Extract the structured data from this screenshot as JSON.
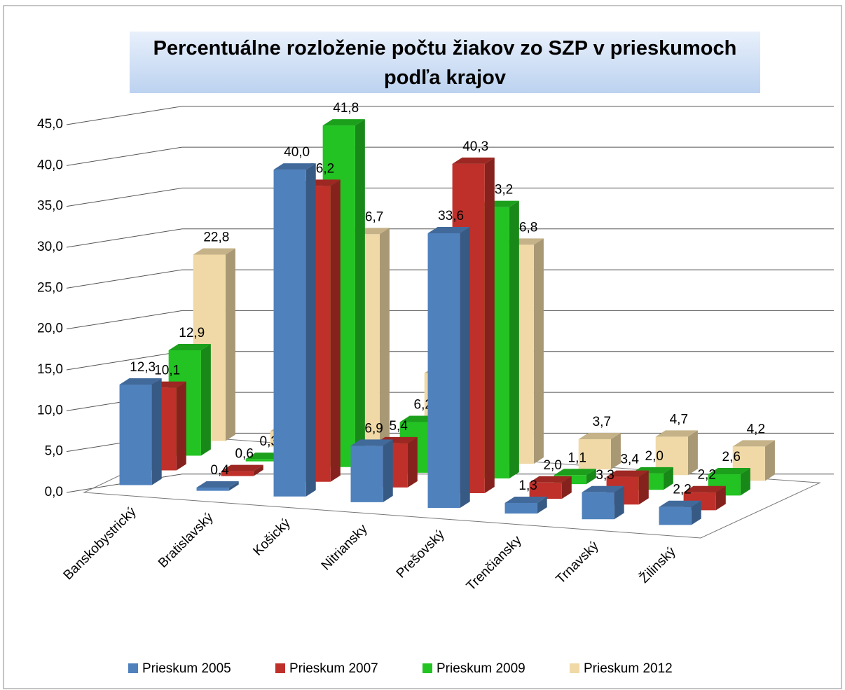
{
  "chart_data": {
    "type": "bar3d",
    "title": "Percentuálne rozloženie počtu žiakov zo SZP v prieskumoch podľa krajov",
    "categories": [
      "Banskobystrický",
      "Bratislavský",
      "Košický",
      "Nitriansky",
      "Prešovský",
      "Trenčiansky",
      "Trnavský",
      "Žilinský"
    ],
    "series": [
      {
        "name": "Prieskum 2005",
        "color": "#4f81bd",
        "values": [
          12.3,
          0.4,
          40.0,
          6.9,
          33.6,
          1.3,
          3.3,
          2.2
        ],
        "value_labels": [
          "12,3",
          "0,4",
          "40,0",
          "6,9",
          "33,6",
          "1,3",
          "3,3",
          "2,2"
        ]
      },
      {
        "name": "Prieskum 2007",
        "color": "#c0302a",
        "values": [
          10.1,
          0.6,
          36.2,
          5.4,
          40.3,
          2.0,
          3.4,
          2.2
        ],
        "value_labels": [
          "10,1",
          "0,6",
          "36,2",
          "5,4",
          "40,3",
          "2,0",
          "3,4",
          "2,2"
        ]
      },
      {
        "name": "Prieskum 2009",
        "color": "#22c322",
        "values": [
          12.9,
          0.3,
          41.8,
          6.2,
          33.2,
          1.1,
          2.0,
          2.6
        ],
        "value_labels": [
          "12,9",
          "0,3",
          "41,8",
          "6,2",
          "33,2",
          "1,1",
          "2,0",
          "2,6"
        ]
      },
      {
        "name": "Prieskum 2012",
        "color": "#f0d9a6",
        "values": [
          22.8,
          1.9,
          26.7,
          10.4,
          26.8,
          3.7,
          4.7,
          4.2
        ],
        "value_labels": [
          "22,8",
          "1,9",
          "26,7",
          "10,4",
          "26,8",
          "3,7",
          "4,7",
          "4,2"
        ]
      }
    ],
    "ylim": [
      0,
      45
    ],
    "yticks": [
      {
        "value": 0,
        "label": "0,0"
      },
      {
        "value": 5,
        "label": "5,0"
      },
      {
        "value": 10,
        "label": "10,0"
      },
      {
        "value": 15,
        "label": "15,0"
      },
      {
        "value": 20,
        "label": "20,0"
      },
      {
        "value": 25,
        "label": "25,0"
      },
      {
        "value": 30,
        "label": "30,0"
      },
      {
        "value": 35,
        "label": "35,0"
      },
      {
        "value": 40,
        "label": "40,0"
      },
      {
        "value": 45,
        "label": "45,0"
      }
    ],
    "grid": true,
    "legend": "bottom"
  }
}
